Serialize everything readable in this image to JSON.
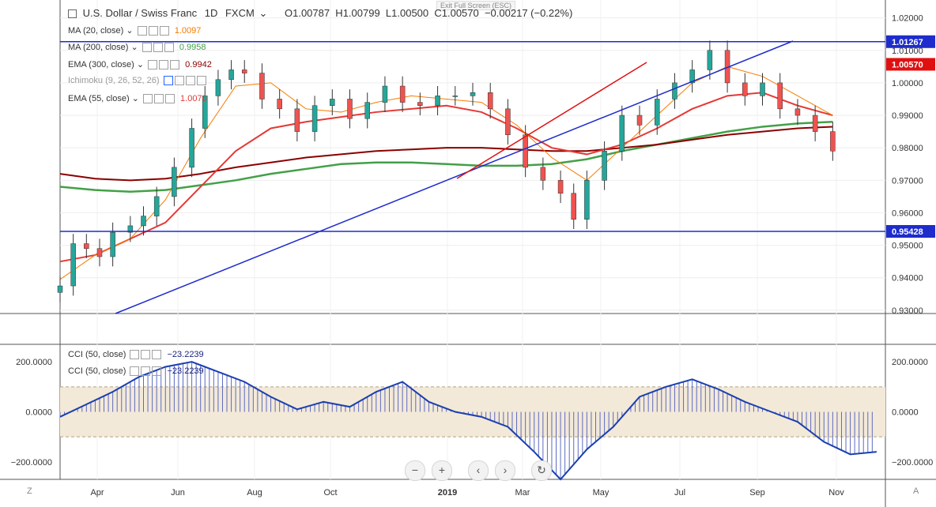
{
  "header": {
    "symbol": "U.S. Dollar / Swiss Franc",
    "interval": "1D",
    "source": "FXCM",
    "ohlc": "O1.00787  H1.00799  L1.00500  C1.00570  −0.00217 (−0.22%)",
    "exit_fullscreen": "Exit Full Screen (ESC)"
  },
  "indicators": [
    {
      "label": "MA (20, close)",
      "value": "1.0097",
      "color": "#f57c00"
    },
    {
      "label": "MA (200, close)",
      "value": "0.9958",
      "color": "#43a047"
    },
    {
      "label": "EMA (300, close)",
      "value": "0.9942",
      "color": "#8b0000"
    },
    {
      "label": "Ichimoku (9, 26, 52, 26)",
      "value": "",
      "color": "#999999"
    },
    {
      "label": "EMA (55, close)",
      "value": "1.0076",
      "color": "#e53935"
    }
  ],
  "cci": [
    {
      "label": "CCI (50, close)",
      "value": "−23.2239"
    },
    {
      "label": "CCI (50, close)",
      "value": "−23.2239"
    }
  ],
  "price_axis_ticks": [
    "1.02000",
    "1.01000",
    "1.00000",
    "0.99000",
    "0.98000",
    "0.97000",
    "0.96000",
    "0.95000",
    "0.94000",
    "0.93000"
  ],
  "cci_axis_ticks": [
    "200.0000",
    "0.0000",
    "−200.0000"
  ],
  "price_badges": [
    {
      "text": "1.01267",
      "color": "#1e2ccc"
    },
    {
      "text": "1.00570",
      "color": "#e01010"
    },
    {
      "text": "0.95428",
      "color": "#1e2ccc"
    }
  ],
  "x_axis_labels": [
    "Apr",
    "Jun",
    "Aug",
    "Oct",
    "2019",
    "Mar",
    "May",
    "Jul",
    "Sep",
    "Nov"
  ],
  "corner_labels": {
    "left": "Z",
    "right": "A"
  },
  "buttons": [
    {
      "name": "zoom-out-button",
      "glyph": "−"
    },
    {
      "name": "zoom-in-button",
      "glyph": "+"
    },
    {
      "name": "scroll-left-button",
      "glyph": "‹"
    },
    {
      "name": "scroll-right-button",
      "glyph": "›"
    },
    {
      "name": "reset-button",
      "glyph": "↻"
    }
  ],
  "chart_data": [
    {
      "type": "candlestick",
      "ylim": [
        0.929,
        1.0255
      ],
      "x_domain_months": [
        2.2,
        11.6
      ],
      "grid": true,
      "candles_approx": [
        [
          2.2,
          0.9375
        ],
        [
          2.35,
          0.9505
        ],
        [
          2.5,
          0.949
        ],
        [
          2.65,
          0.9465
        ],
        [
          2.8,
          0.954
        ],
        [
          3.0,
          0.956
        ],
        [
          3.15,
          0.959
        ],
        [
          3.3,
          0.965
        ],
        [
          3.5,
          0.974
        ],
        [
          3.7,
          0.986
        ],
        [
          3.85,
          0.996
        ],
        [
          4.0,
          1.001
        ],
        [
          4.15,
          1.004
        ],
        [
          4.3,
          1.003
        ],
        [
          4.5,
          0.995
        ],
        [
          4.7,
          0.992
        ],
        [
          4.9,
          0.985
        ],
        [
          5.1,
          0.993
        ],
        [
          5.3,
          0.995
        ],
        [
          5.5,
          0.989
        ],
        [
          5.7,
          0.994
        ],
        [
          5.9,
          0.999
        ],
        [
          6.1,
          0.994
        ],
        [
          6.3,
          0.993
        ],
        [
          6.5,
          0.996
        ],
        [
          6.7,
          0.996
        ],
        [
          6.9,
          0.997
        ],
        [
          7.1,
          0.992
        ],
        [
          7.3,
          0.984
        ],
        [
          7.5,
          0.974
        ],
        [
          7.7,
          0.97
        ],
        [
          7.9,
          0.966
        ],
        [
          8.05,
          0.958
        ],
        [
          8.2,
          0.97
        ],
        [
          8.4,
          0.979
        ],
        [
          8.6,
          0.99
        ],
        [
          8.8,
          0.987
        ],
        [
          9.0,
          0.995
        ],
        [
          9.2,
          1.0
        ],
        [
          9.4,
          1.004
        ],
        [
          9.6,
          1.01
        ],
        [
          9.8,
          1.0
        ],
        [
          10.0,
          0.996
        ],
        [
          10.2,
          1.0
        ],
        [
          10.4,
          0.992
        ],
        [
          10.6,
          0.99
        ],
        [
          10.8,
          0.985
        ],
        [
          11.0,
          0.979
        ]
      ],
      "lines": {
        "ma20": [
          [
            2.2,
            0.9395
          ],
          [
            2.6,
            0.947
          ],
          [
            3.0,
            0.952
          ],
          [
            3.4,
            0.964
          ],
          [
            3.8,
            0.983
          ],
          [
            4.2,
            0.999
          ],
          [
            4.6,
            1.0
          ],
          [
            5.0,
            0.992
          ],
          [
            5.4,
            0.991
          ],
          [
            5.8,
            0.994
          ],
          [
            6.2,
            0.996
          ],
          [
            6.6,
            0.995
          ],
          [
            7.0,
            0.994
          ],
          [
            7.4,
            0.987
          ],
          [
            7.8,
            0.977
          ],
          [
            8.2,
            0.97
          ],
          [
            8.6,
            0.98
          ],
          [
            9.0,
            0.99
          ],
          [
            9.4,
            1.0
          ],
          [
            9.8,
            1.005
          ],
          [
            10.2,
            1.002
          ],
          [
            10.6,
            0.996
          ],
          [
            11.0,
            0.99
          ]
        ],
        "ema55": [
          [
            2.2,
            0.945
          ],
          [
            2.6,
            0.947
          ],
          [
            3.0,
            0.952
          ],
          [
            3.4,
            0.957
          ],
          [
            3.8,
            0.968
          ],
          [
            4.2,
            0.979
          ],
          [
            4.6,
            0.986
          ],
          [
            5.0,
            0.988
          ],
          [
            5.4,
            0.9895
          ],
          [
            5.8,
            0.991
          ],
          [
            6.2,
            0.992
          ],
          [
            6.6,
            0.993
          ],
          [
            7.0,
            0.991
          ],
          [
            7.4,
            0.986
          ],
          [
            7.8,
            0.98
          ],
          [
            8.2,
            0.978
          ],
          [
            8.6,
            0.981
          ],
          [
            9.0,
            0.986
          ],
          [
            9.4,
            0.992
          ],
          [
            9.8,
            0.996
          ],
          [
            10.2,
            0.997
          ],
          [
            10.6,
            0.993
          ],
          [
            11.0,
            0.99
          ]
        ],
        "ma200": [
          [
            2.2,
            0.968
          ],
          [
            2.6,
            0.967
          ],
          [
            3.0,
            0.9665
          ],
          [
            3.4,
            0.967
          ],
          [
            3.8,
            0.9685
          ],
          [
            4.2,
            0.97
          ],
          [
            4.6,
            0.972
          ],
          [
            5.0,
            0.9735
          ],
          [
            5.4,
            0.975
          ],
          [
            5.8,
            0.9755
          ],
          [
            6.2,
            0.9755
          ],
          [
            6.6,
            0.975
          ],
          [
            7.0,
            0.9745
          ],
          [
            7.4,
            0.9745
          ],
          [
            7.8,
            0.975
          ],
          [
            8.2,
            0.9765
          ],
          [
            8.6,
            0.979
          ],
          [
            9.0,
            0.981
          ],
          [
            9.4,
            0.983
          ],
          [
            9.8,
            0.985
          ],
          [
            10.2,
            0.9865
          ],
          [
            10.6,
            0.9875
          ],
          [
            11.0,
            0.988
          ]
        ],
        "ema300": [
          [
            2.2,
            0.972
          ],
          [
            2.6,
            0.9705
          ],
          [
            3.0,
            0.97
          ],
          [
            3.4,
            0.9705
          ],
          [
            3.8,
            0.972
          ],
          [
            4.2,
            0.974
          ],
          [
            4.6,
            0.9755
          ],
          [
            5.0,
            0.977
          ],
          [
            5.4,
            0.978
          ],
          [
            5.8,
            0.979
          ],
          [
            6.2,
            0.9795
          ],
          [
            6.6,
            0.98
          ],
          [
            7.0,
            0.98
          ],
          [
            7.4,
            0.9795
          ],
          [
            7.8,
            0.979
          ],
          [
            8.2,
            0.979
          ],
          [
            8.6,
            0.98
          ],
          [
            9.0,
            0.981
          ],
          [
            9.4,
            0.9825
          ],
          [
            9.8,
            0.984
          ],
          [
            10.2,
            0.985
          ],
          [
            10.6,
            0.986
          ],
          [
            11.0,
            0.9865
          ]
        ]
      },
      "horizontal_levels": [
        1.01267,
        0.95428
      ]
    },
    {
      "type": "area",
      "title": "CCI (50, close)",
      "ylim": [
        -270,
        270
      ],
      "band": [
        -100,
        100
      ],
      "values_approx": [
        [
          2.2,
          -20
        ],
        [
          2.5,
          30
        ],
        [
          2.8,
          80
        ],
        [
          3.1,
          140
        ],
        [
          3.4,
          180
        ],
        [
          3.7,
          200
        ],
        [
          4.0,
          160
        ],
        [
          4.3,
          120
        ],
        [
          4.6,
          60
        ],
        [
          4.9,
          10
        ],
        [
          5.2,
          40
        ],
        [
          5.5,
          20
        ],
        [
          5.8,
          80
        ],
        [
          6.1,
          120
        ],
        [
          6.4,
          40
        ],
        [
          6.7,
          0
        ],
        [
          7.0,
          -20
        ],
        [
          7.3,
          -60
        ],
        [
          7.6,
          -160
        ],
        [
          7.9,
          -270
        ],
        [
          8.2,
          -150
        ],
        [
          8.5,
          -60
        ],
        [
          8.8,
          60
        ],
        [
          9.1,
          100
        ],
        [
          9.4,
          130
        ],
        [
          9.7,
          90
        ],
        [
          10.0,
          40
        ],
        [
          10.3,
          0
        ],
        [
          10.6,
          -40
        ],
        [
          10.9,
          -120
        ],
        [
          11.2,
          -170
        ],
        [
          11.5,
          -160
        ]
      ]
    }
  ]
}
